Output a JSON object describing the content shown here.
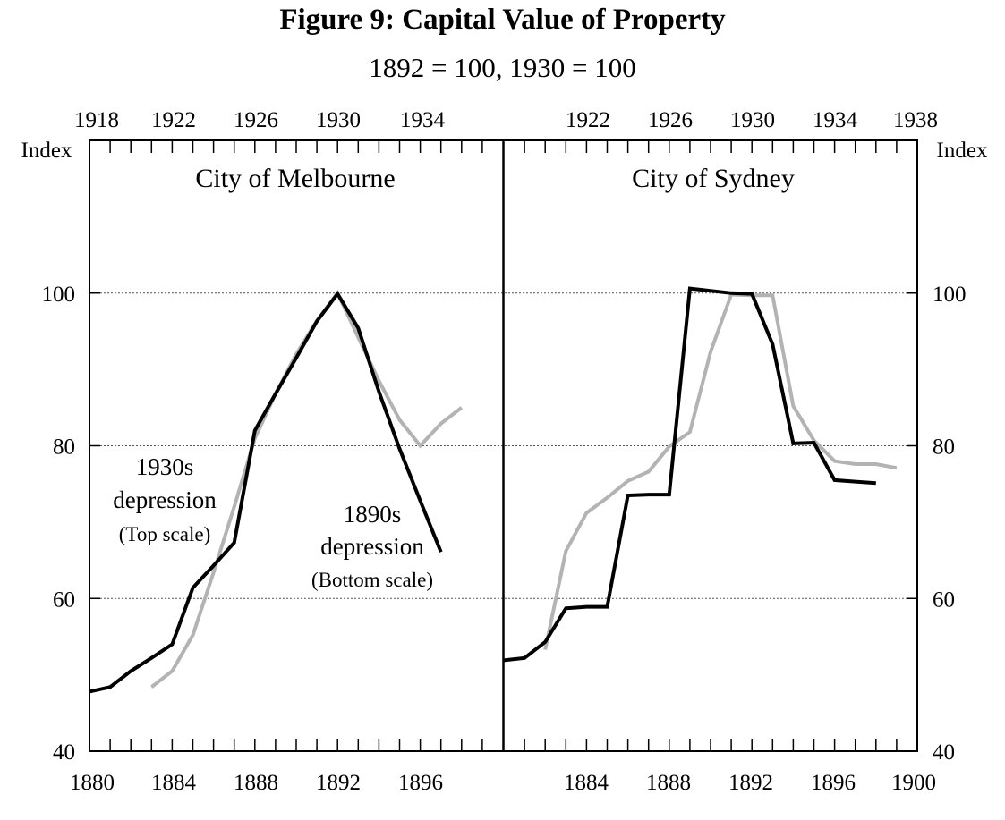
{
  "figure": {
    "title": "Figure 9: Capital Value of Property",
    "subtitle": "1892 = 100, 1930 = 100"
  },
  "colors": {
    "series_1890s": "#000000",
    "series_1930s": "#b3b3b3",
    "gridline": "#555555"
  },
  "chart_data": {
    "type": "line",
    "y_axis": {
      "label_left": "Index",
      "label_right": "Index",
      "ylim": [
        40,
        120
      ],
      "ticks": [
        40,
        60,
        80,
        100
      ],
      "gridlines": [
        60,
        80,
        100
      ]
    },
    "bottom_axis": {
      "xlim": [
        1880,
        1900
      ],
      "labels": [
        "1880",
        "1884",
        "1888",
        "1892",
        "1896",
        "1884",
        "1888",
        "1892",
        "1896",
        "1900"
      ]
    },
    "top_axis": {
      "xlim": [
        1918,
        1938
      ],
      "labels": [
        "1918",
        "1922",
        "1926",
        "1930",
        "1934",
        "1922",
        "1926",
        "1930",
        "1934",
        "1938"
      ]
    },
    "panels": [
      {
        "title": "City of Melbourne",
        "bottom_xlim": [
          1880,
          1900
        ],
        "top_xlim": [
          1918,
          1938
        ],
        "bottom_ticks": [
          1880,
          1884,
          1888,
          1892,
          1896
        ],
        "top_ticks": [
          1918,
          1922,
          1926,
          1930,
          1934
        ],
        "series": [
          {
            "name": "1890s depression",
            "axis": "bottom",
            "x": [
              1880,
              1881,
              1882,
              1883,
              1884,
              1885,
              1886,
              1887,
              1888,
              1889,
              1890,
              1891,
              1892,
              1893,
              1894,
              1895,
              1896,
              1897
            ],
            "y": [
              47.8,
              48.4,
              50.5,
              52.2,
              54.0,
              61.4,
              64.3,
              67.3,
              82.0,
              86.8,
              91.5,
              96.3,
              99.9,
              95.4,
              87.1,
              79.6,
              72.8,
              66.1
            ]
          },
          {
            "name": "1930s depression",
            "axis": "top",
            "x": [
              1921,
              1922,
              1923,
              1924,
              1925,
              1926,
              1927,
              1928,
              1929,
              1930,
              1931,
              1932,
              1933,
              1934,
              1935,
              1936
            ],
            "y": [
              48.4,
              50.5,
              55.2,
              63.4,
              72.0,
              81.0,
              86.8,
              92.0,
              96.4,
              100.0,
              94.2,
              88.5,
              83.4,
              80.0,
              82.9,
              85.0
            ]
          }
        ]
      },
      {
        "title": "City of Sydney",
        "bottom_xlim": [
          1880,
          1900
        ],
        "top_xlim": [
          1918,
          1938
        ],
        "bottom_ticks": [
          1884,
          1888,
          1892,
          1896,
          1900
        ],
        "top_ticks": [
          1922,
          1926,
          1930,
          1934,
          1938
        ],
        "series": [
          {
            "name": "1890s depression",
            "axis": "bottom",
            "x": [
              1880,
              1881,
              1882,
              1883,
              1884,
              1885,
              1886,
              1887,
              1888,
              1889,
              1890,
              1891,
              1892,
              1893,
              1894,
              1895,
              1896,
              1897,
              1898
            ],
            "y": [
              51.9,
              52.2,
              54.3,
              58.7,
              58.9,
              58.9,
              73.5,
              73.6,
              73.6,
              100.6,
              100.3,
              100.0,
              99.9,
              93.3,
              80.3,
              80.4,
              75.5,
              75.3,
              75.1
            ]
          },
          {
            "name": "1930s depression",
            "axis": "top",
            "x": [
              1920,
              1921,
              1922,
              1923,
              1924,
              1925,
              1926,
              1927,
              1928,
              1929,
              1930,
              1931,
              1932,
              1933,
              1934,
              1935,
              1936,
              1937
            ],
            "y": [
              53.3,
              66.2,
              71.2,
              73.2,
              75.4,
              76.6,
              79.9,
              81.8,
              92.3,
              99.8,
              99.7,
              99.7,
              85.2,
              80.7,
              78.0,
              77.6,
              77.6,
              77.1
            ]
          }
        ]
      }
    ],
    "annotations": {
      "a1930s": {
        "name": "1930s",
        "name2": "depression",
        "scale": "(Top scale)"
      },
      "a1890s": {
        "name": "1890s",
        "name2": "depression",
        "scale": "(Bottom scale)"
      }
    }
  }
}
